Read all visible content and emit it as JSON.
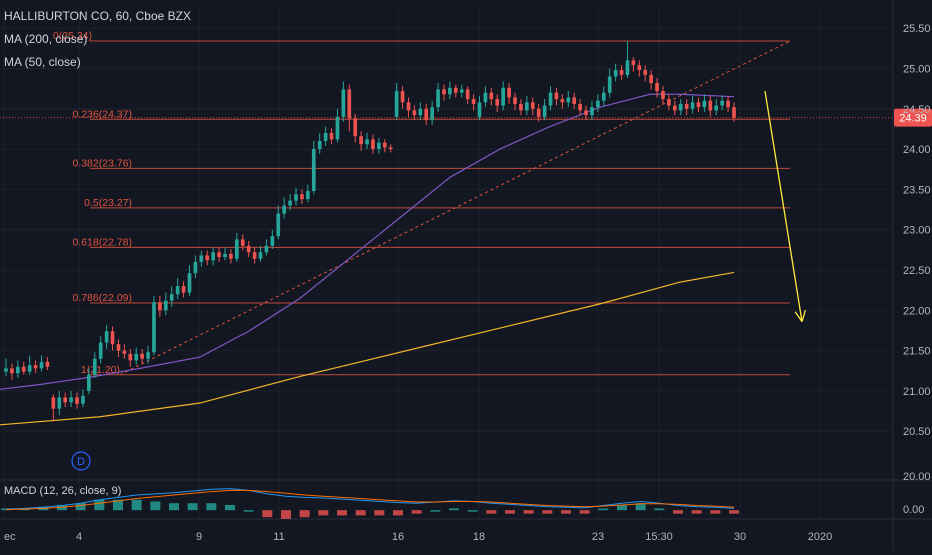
{
  "legend": {
    "symbol": "HALLIBURTON CO, 60, Cboe BZX",
    "ma200": "MA (200, close)",
    "ma50": "MA (50, close)"
  },
  "macd_legend": "MACD (12, 26, close, 9)",
  "last_price_label": "24.39",
  "event_badge": "D",
  "colors": {
    "background": "#131722",
    "grid": "#1e222d",
    "up": "#26a69a",
    "down": "#ef5350",
    "fib": "#e0533f",
    "ma50": "#7e57c2",
    "ma200": "#f0b429",
    "arrow": "#ffeb3b",
    "price_tag": "#ef5350",
    "badge": "#2962ff"
  },
  "chart_data": [
    {
      "type": "candlestick",
      "title": "HALLIBURTON CO, 60, Cboe BZX",
      "x_tick_labels": [
        "ec",
        "4",
        "9",
        "11",
        "16",
        "18",
        "23",
        "15:30",
        "30",
        "2020"
      ],
      "y_ticks": [
        20.0,
        20.5,
        21.0,
        21.5,
        22.0,
        22.5,
        23.0,
        23.5,
        24.0,
        24.5,
        25.0,
        25.5
      ],
      "ylim": [
        19.92,
        25.75
      ],
      "last_price": 24.39,
      "fib_levels": [
        {
          "label": "0(25.34)",
          "value": 25.34
        },
        {
          "label": "0.236(24.37)",
          "value": 24.37
        },
        {
          "label": "0.382(23.76)",
          "value": 23.76
        },
        {
          "label": "0.5(23.27)",
          "value": 23.27
        },
        {
          "label": "0.618(22.78)",
          "value": 22.78
        },
        {
          "label": "0.786(22.09)",
          "value": 22.09
        },
        {
          "label": "1(21.20)",
          "value": 21.2
        }
      ],
      "ma50": [
        [
          0,
          21.02
        ],
        [
          40,
          21.08
        ],
        [
          90,
          21.17
        ],
        [
          140,
          21.28
        ],
        [
          200,
          21.42
        ],
        [
          250,
          21.75
        ],
        [
          300,
          22.15
        ],
        [
          350,
          22.65
        ],
        [
          400,
          23.15
        ],
        [
          450,
          23.65
        ],
        [
          500,
          24.0
        ],
        [
          550,
          24.28
        ],
        [
          600,
          24.52
        ],
        [
          650,
          24.68
        ],
        [
          680,
          24.68
        ],
        [
          734,
          24.65
        ]
      ],
      "ma200": [
        [
          0,
          20.58
        ],
        [
          100,
          20.68
        ],
        [
          200,
          20.85
        ],
        [
          300,
          21.18
        ],
        [
          400,
          21.48
        ],
        [
          500,
          21.78
        ],
        [
          600,
          22.08
        ],
        [
          680,
          22.35
        ],
        [
          734,
          22.47
        ]
      ],
      "projection_line": {
        "from": [
          120,
          21.2
        ],
        "to": [
          790,
          25.34
        ]
      },
      "arrow": {
        "from": [
          765,
          24.72
        ],
        "to": [
          802,
          21.86
        ]
      },
      "candles": [
        [
          21.24,
          21.28,
          21.4,
          21.18
        ],
        [
          21.28,
          21.22,
          21.34,
          21.14
        ],
        [
          21.22,
          21.3,
          21.38,
          21.16
        ],
        [
          21.3,
          21.24,
          21.36,
          21.2
        ],
        [
          21.24,
          21.32,
          21.44,
          21.2
        ],
        [
          21.32,
          21.28,
          21.38,
          21.22
        ],
        [
          21.28,
          21.36,
          21.44,
          21.24
        ],
        [
          21.36,
          21.3,
          21.42,
          21.26
        ],
        [
          20.92,
          20.78,
          20.96,
          20.62
        ],
        [
          20.78,
          20.92,
          21.0,
          20.7
        ],
        [
          20.92,
          20.86,
          20.98,
          20.8
        ],
        [
          20.86,
          20.92,
          21.0,
          20.8
        ],
        [
          20.92,
          20.84,
          20.98,
          20.78
        ],
        [
          20.84,
          20.94,
          21.02,
          20.8
        ],
        [
          21.0,
          21.2,
          21.28,
          20.96
        ],
        [
          21.2,
          21.4,
          21.48,
          21.16
        ],
        [
          21.4,
          21.6,
          21.68,
          21.34
        ],
        [
          21.6,
          21.74,
          21.82,
          21.52
        ],
        [
          21.74,
          21.58,
          21.8,
          21.5
        ],
        [
          21.58,
          21.5,
          21.64,
          21.42
        ],
        [
          21.5,
          21.46,
          21.58,
          21.4
        ],
        [
          21.46,
          21.38,
          21.52,
          21.3
        ],
        [
          21.38,
          21.46,
          21.54,
          21.32
        ],
        [
          21.46,
          21.4,
          21.52,
          21.34
        ],
        [
          21.4,
          21.48,
          21.56,
          21.34
        ],
        [
          21.48,
          22.1,
          22.18,
          21.44
        ],
        [
          22.1,
          22.0,
          22.18,
          21.92
        ],
        [
          22.0,
          22.12,
          22.22,
          21.94
        ],
        [
          22.12,
          22.2,
          22.3,
          22.04
        ],
        [
          22.2,
          22.3,
          22.4,
          22.14
        ],
        [
          22.3,
          22.22,
          22.36,
          22.16
        ],
        [
          22.22,
          22.46,
          22.56,
          22.18
        ],
        [
          22.46,
          22.6,
          22.68,
          22.4
        ],
        [
          22.6,
          22.68,
          22.74,
          22.54
        ],
        [
          22.68,
          22.62,
          22.74,
          22.56
        ],
        [
          22.62,
          22.72,
          22.78,
          22.56
        ],
        [
          22.72,
          22.66,
          22.78,
          22.6
        ],
        [
          22.66,
          22.7,
          22.78,
          22.62
        ],
        [
          22.7,
          22.64,
          22.76,
          22.58
        ],
        [
          22.64,
          22.88,
          22.96,
          22.6
        ],
        [
          22.88,
          22.8,
          22.94,
          22.74
        ],
        [
          22.8,
          22.72,
          22.86,
          22.66
        ],
        [
          22.72,
          22.64,
          22.78,
          22.58
        ],
        [
          22.64,
          22.72,
          22.8,
          22.6
        ],
        [
          22.72,
          22.8,
          22.88,
          22.68
        ],
        [
          22.8,
          22.92,
          23.0,
          22.76
        ],
        [
          22.92,
          23.2,
          23.3,
          22.88
        ],
        [
          23.2,
          23.3,
          23.4,
          23.14
        ],
        [
          23.3,
          23.36,
          23.44,
          23.24
        ],
        [
          23.36,
          23.44,
          23.52,
          23.3
        ],
        [
          23.44,
          23.38,
          23.5,
          23.32
        ],
        [
          23.38,
          23.48,
          23.56,
          23.34
        ],
        [
          23.48,
          24.0,
          24.1,
          23.44
        ],
        [
          24.0,
          24.1,
          24.2,
          23.94
        ],
        [
          24.1,
          24.2,
          24.28,
          24.04
        ],
        [
          24.2,
          24.12,
          24.26,
          24.06
        ],
        [
          24.12,
          24.4,
          24.5,
          24.08
        ],
        [
          24.4,
          24.74,
          24.84,
          24.34
        ],
        [
          24.74,
          24.38,
          24.8,
          24.22
        ],
        [
          24.38,
          24.16,
          24.44,
          24.08
        ],
        [
          24.16,
          24.06,
          24.22,
          23.98
        ],
        [
          24.06,
          24.12,
          24.2,
          24.0
        ],
        [
          24.12,
          24.0,
          24.18,
          23.94
        ],
        [
          24.0,
          24.08,
          24.14,
          23.94
        ],
        [
          24.08,
          24.02,
          24.12,
          23.96
        ],
        [
          24.02,
          24.0,
          24.06,
          23.96
        ],
        [
          24.4,
          24.72,
          24.82,
          24.36
        ],
        [
          24.72,
          24.58,
          24.78,
          24.5
        ],
        [
          24.58,
          24.48,
          24.64,
          24.4
        ],
        [
          24.48,
          24.42,
          24.54,
          24.36
        ],
        [
          24.42,
          24.5,
          24.58,
          24.36
        ],
        [
          24.5,
          24.36,
          24.56,
          24.3
        ],
        [
          24.36,
          24.52,
          24.6,
          24.3
        ],
        [
          24.52,
          24.74,
          24.82,
          24.46
        ],
        [
          24.74,
          24.68,
          24.8,
          24.6
        ],
        [
          24.68,
          24.76,
          24.84,
          24.62
        ],
        [
          24.76,
          24.7,
          24.8,
          24.64
        ],
        [
          24.7,
          24.74,
          24.8,
          24.64
        ],
        [
          24.74,
          24.62,
          24.78,
          24.56
        ],
        [
          24.62,
          24.56,
          24.68,
          24.48
        ],
        [
          24.4,
          24.58,
          24.66,
          24.36
        ],
        [
          24.58,
          24.7,
          24.78,
          24.52
        ],
        [
          24.7,
          24.62,
          24.76,
          24.54
        ],
        [
          24.62,
          24.54,
          24.68,
          24.46
        ],
        [
          24.54,
          24.76,
          24.84,
          24.48
        ],
        [
          24.76,
          24.64,
          24.82,
          24.56
        ],
        [
          24.64,
          24.56,
          24.7,
          24.48
        ],
        [
          24.56,
          24.48,
          24.62,
          24.42
        ],
        [
          24.48,
          24.58,
          24.66,
          24.42
        ],
        [
          24.58,
          24.5,
          24.64,
          24.42
        ],
        [
          24.5,
          24.4,
          24.56,
          24.34
        ],
        [
          24.4,
          24.54,
          24.62,
          24.36
        ],
        [
          24.54,
          24.7,
          24.78,
          24.48
        ],
        [
          24.7,
          24.62,
          24.76,
          24.54
        ],
        [
          24.62,
          24.58,
          24.68,
          24.5
        ],
        [
          24.58,
          24.64,
          24.72,
          24.52
        ],
        [
          24.64,
          24.56,
          24.7,
          24.5
        ],
        [
          24.56,
          24.48,
          24.62,
          24.42
        ],
        [
          24.48,
          24.42,
          24.54,
          24.36
        ],
        [
          24.42,
          24.52,
          24.6,
          24.36
        ],
        [
          24.52,
          24.6,
          24.68,
          24.46
        ],
        [
          24.6,
          24.7,
          24.78,
          24.54
        ],
        [
          24.7,
          24.9,
          25.0,
          24.64
        ],
        [
          24.9,
          24.98,
          25.06,
          24.84
        ],
        [
          24.98,
          24.92,
          25.04,
          24.86
        ],
        [
          24.92,
          25.1,
          25.34,
          24.88
        ],
        [
          25.1,
          25.04,
          25.14,
          24.96
        ],
        [
          25.04,
          24.98,
          25.1,
          24.9
        ],
        [
          24.98,
          24.92,
          25.04,
          24.84
        ],
        [
          24.92,
          24.82,
          24.98,
          24.74
        ],
        [
          24.82,
          24.72,
          24.88,
          24.64
        ],
        [
          24.72,
          24.62,
          24.78,
          24.56
        ],
        [
          24.62,
          24.54,
          24.68,
          24.48
        ],
        [
          24.54,
          24.48,
          24.6,
          24.42
        ],
        [
          24.48,
          24.56,
          24.62,
          24.42
        ],
        [
          24.56,
          24.5,
          24.62,
          24.42
        ],
        [
          24.5,
          24.58,
          24.66,
          24.44
        ],
        [
          24.58,
          24.52,
          24.64,
          24.46
        ],
        [
          24.52,
          24.6,
          24.68,
          24.46
        ],
        [
          24.6,
          24.48,
          24.66,
          24.4
        ],
        [
          24.48,
          24.54,
          24.62,
          24.42
        ],
        [
          24.54,
          24.6,
          24.66,
          24.48
        ],
        [
          24.6,
          24.52,
          24.66,
          24.46
        ],
        [
          24.52,
          24.39,
          24.58,
          24.34
        ]
      ]
    },
    {
      "type": "macd",
      "title": "MACD (12, 26, close, 9)",
      "y_ticks": [
        20.0,
        0.0
      ],
      "macd_line": [
        0.02,
        0.03,
        0.05,
        0.08,
        0.12,
        0.18,
        0.22,
        0.26,
        0.28,
        0.3,
        0.33,
        0.36,
        0.37,
        0.34,
        0.28,
        0.24,
        0.22,
        0.21,
        0.19,
        0.17,
        0.15,
        0.13,
        0.12,
        0.14,
        0.16,
        0.15,
        0.12,
        0.1,
        0.08,
        0.06,
        0.05,
        0.04,
        0.08,
        0.12,
        0.15,
        0.12,
        0.08,
        0.06,
        0.05,
        0.03
      ],
      "signal_line": [
        0.01,
        0.02,
        0.03,
        0.05,
        0.08,
        0.12,
        0.16,
        0.2,
        0.23,
        0.26,
        0.29,
        0.32,
        0.34,
        0.34,
        0.32,
        0.29,
        0.26,
        0.24,
        0.22,
        0.2,
        0.18,
        0.16,
        0.14,
        0.14,
        0.15,
        0.15,
        0.14,
        0.12,
        0.1,
        0.08,
        0.07,
        0.06,
        0.07,
        0.09,
        0.11,
        0.11,
        0.1,
        0.08,
        0.07,
        0.05
      ]
    }
  ]
}
